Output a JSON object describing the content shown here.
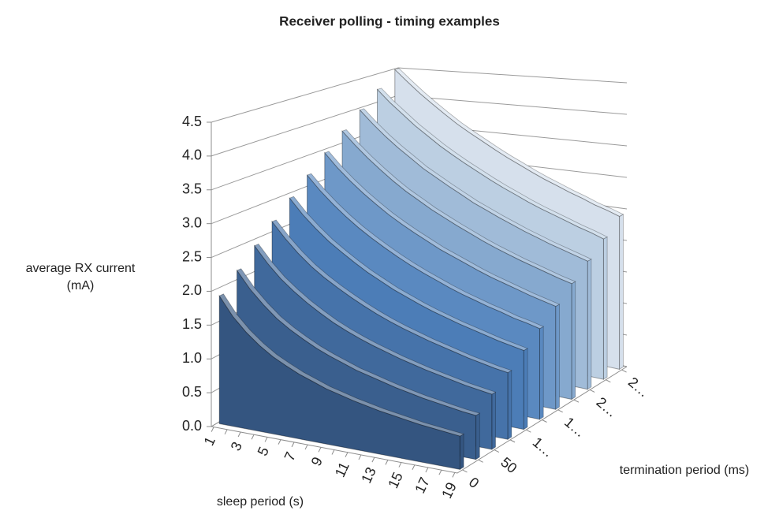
{
  "chart_data": {
    "type": "area3d",
    "title": "Receiver polling - timing examples",
    "y_label": [
      "average RX current",
      "(mA)"
    ],
    "x_label": "sleep period (s)",
    "z_label": "termination period (ms)",
    "categories": [
      "1",
      null,
      "3",
      null,
      "5",
      null,
      "7",
      null,
      "9",
      null,
      "11",
      null,
      "13",
      null,
      "15",
      null,
      "17",
      null,
      "19"
    ],
    "ylim": [
      0,
      4.5
    ],
    "yticks": [
      {
        "value": 0,
        "label": "0.0"
      },
      0.5,
      {
        "value": 1,
        "label": "1.0"
      },
      1.5,
      {
        "value": 2,
        "label": "2.0"
      },
      2.5,
      {
        "value": 3,
        "label": "3.0"
      },
      3.5,
      {
        "value": 4,
        "label": "4.0"
      },
      4.5
    ],
    "grid": true,
    "series": [
      {
        "name": "0",
        "color": "#345580",
        "values": [
          1.9,
          1.63,
          1.43,
          1.27,
          1.14,
          1.04,
          0.95,
          0.88,
          0.81,
          0.76,
          0.71,
          0.67,
          0.63,
          0.6,
          0.57,
          0.54,
          0.52,
          0.5,
          0.48
        ]
      },
      {
        "name": null,
        "color": "#3a5f8e",
        "values": [
          2.16,
          1.91,
          1.71,
          1.54,
          1.41,
          1.3,
          1.2,
          1.12,
          1.05,
          0.98,
          0.93,
          0.88,
          0.83,
          0.79,
          0.75,
          0.72,
          0.69,
          0.66,
          0.64
        ]
      },
      {
        "name": "50",
        "color": "#40699c",
        "values": [
          2.42,
          2.18,
          1.98,
          1.82,
          1.68,
          1.56,
          1.45,
          1.36,
          1.28,
          1.21,
          1.15,
          1.09,
          1.04,
          0.99,
          0.95,
          0.91,
          0.87,
          0.84,
          0.81
        ]
      },
      {
        "name": null,
        "color": "#4673aa",
        "values": [
          2.68,
          2.45,
          2.25,
          2.08,
          1.94,
          1.82,
          1.71,
          1.61,
          1.52,
          1.44,
          1.37,
          1.31,
          1.25,
          1.2,
          1.15,
          1.1,
          1.06,
          1.02,
          0.99
        ]
      },
      {
        "name": "1…",
        "color": "#4c7db7",
        "values": [
          2.94,
          2.71,
          2.52,
          2.35,
          2.21,
          2.08,
          1.96,
          1.86,
          1.76,
          1.68,
          1.6,
          1.53,
          1.47,
          1.41,
          1.36,
          1.31,
          1.26,
          1.22,
          1.18
        ]
      },
      {
        "name": null,
        "color": "#5a89c0",
        "values": [
          3.2,
          2.98,
          2.79,
          2.62,
          2.47,
          2.34,
          2.22,
          2.11,
          2.01,
          1.92,
          1.84,
          1.76,
          1.69,
          1.63,
          1.57,
          1.52,
          1.46,
          1.42,
          1.37
        ]
      },
      {
        "name": "1…",
        "color": "#6e98c8",
        "values": [
          3.46,
          3.24,
          3.05,
          2.88,
          2.73,
          2.59,
          2.47,
          2.36,
          2.26,
          2.16,
          2.08,
          2.0,
          1.92,
          1.85,
          1.79,
          1.73,
          1.67,
          1.62,
          1.57
        ]
      },
      {
        "name": null,
        "color": "#86a9cf",
        "values": [
          3.72,
          3.51,
          3.32,
          3.15,
          2.99,
          2.85,
          2.73,
          2.61,
          2.51,
          2.41,
          2.32,
          2.23,
          2.15,
          2.08,
          2.01,
          1.95,
          1.89,
          1.83,
          1.78
        ]
      },
      {
        "name": "2…",
        "color": "#a0bbd8",
        "values": [
          3.98,
          3.77,
          3.58,
          3.41,
          3.26,
          3.11,
          2.99,
          2.87,
          2.76,
          2.65,
          2.56,
          2.47,
          2.39,
          2.31,
          2.24,
          2.17,
          2.11,
          2.05,
          1.99
        ]
      },
      {
        "name": null,
        "color": "#bccfe2",
        "values": [
          4.24,
          4.03,
          3.85,
          3.67,
          3.52,
          3.37,
          3.24,
          3.12,
          3.01,
          2.9,
          2.8,
          2.71,
          2.62,
          2.54,
          2.47,
          2.4,
          2.33,
          2.27,
          2.2
        ]
      },
      {
        "name": "2…",
        "color": "#d6e0ec",
        "values": [
          4.5,
          4.3,
          4.11,
          3.94,
          3.78,
          3.63,
          3.5,
          3.38,
          3.26,
          3.15,
          3.05,
          2.95,
          2.86,
          2.78,
          2.7,
          2.63,
          2.55,
          2.49,
          2.42
        ]
      }
    ]
  }
}
